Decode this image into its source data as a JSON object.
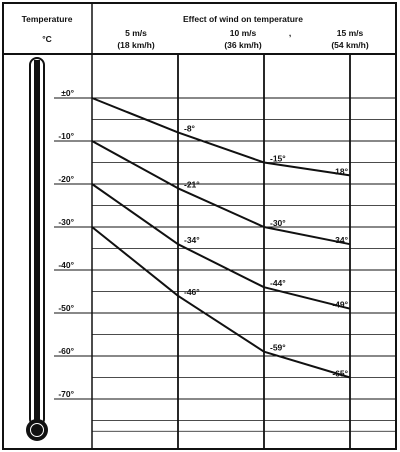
{
  "header": {
    "left_title": "Temperature",
    "left_unit": "°C",
    "right_title": "Effect of wind on temperature",
    "columns": [
      {
        "speed": "5 m/s",
        "kmh": "(18 km/h)"
      },
      {
        "speed": "10 m/s",
        "kmh": "(36 km/h)"
      },
      {
        "speed": "15 m/s",
        "kmh": "(54 km/h)"
      }
    ],
    "stray_mark": ","
  },
  "colors": {
    "ink": "#111111",
    "background": "#ffffff"
  },
  "chart_data": {
    "type": "line",
    "x": [
      0,
      5,
      10,
      15
    ],
    "x_tick_labels": [
      "",
      "5 m/s (18 km/h)",
      "10 m/s (36 km/h)",
      "15 m/s (54 km/h)"
    ],
    "ylim": [
      -80,
      0
    ],
    "y_ticks": [
      0,
      -10,
      -20,
      -30,
      -40,
      -50,
      -60,
      -70
    ],
    "y_tick_labels": [
      "±0°",
      "-10°",
      "-20°",
      "-30°",
      "-40°",
      "-50°",
      "-60°",
      "-70°"
    ],
    "grid": true,
    "series": [
      {
        "values": [
          0,
          -8,
          -15,
          -18
        ],
        "labels": [
          "",
          "-8°",
          "-15°",
          "-18°"
        ]
      },
      {
        "values": [
          -10,
          -21,
          -30,
          -34
        ],
        "labels": [
          "",
          "-21°",
          "-30°",
          "-34°"
        ]
      },
      {
        "values": [
          -20,
          -34,
          -44,
          -49
        ],
        "labels": [
          "",
          "-34°",
          "-44°",
          "-49°"
        ]
      },
      {
        "values": [
          -30,
          -46,
          -59,
          -65
        ],
        "labels": [
          "",
          "-46°",
          "-59°",
          "-65°"
        ]
      }
    ]
  }
}
